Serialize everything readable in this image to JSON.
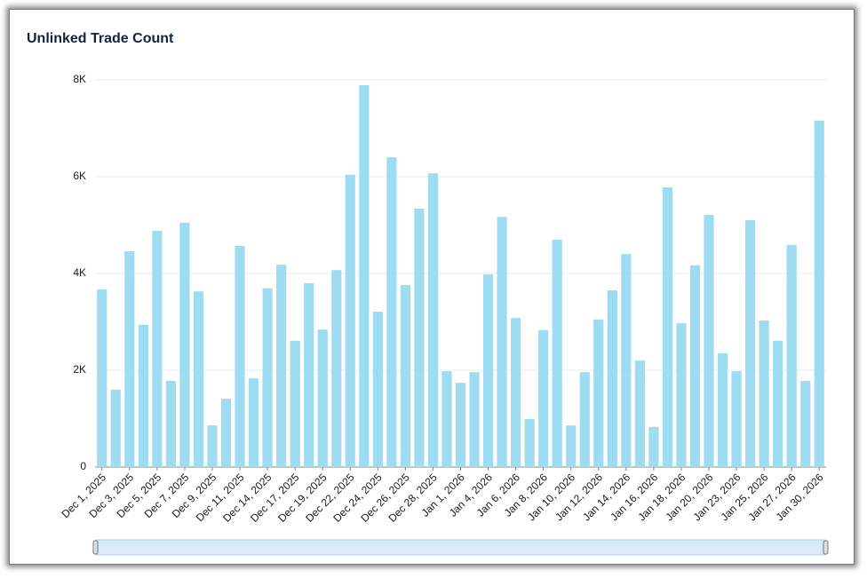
{
  "chart_data": {
    "type": "bar",
    "title": "Unlinked Trade Count",
    "categories": [
      "Dec 1, 2025",
      null,
      "Dec 3, 2025",
      null,
      "Dec 5, 2025",
      null,
      "Dec 7, 2025",
      null,
      "Dec 9, 2025",
      null,
      "Dec 11, 2025",
      null,
      "Dec 14, 2025",
      null,
      "Dec 17, 2025",
      null,
      "Dec 19, 2025",
      null,
      "Dec 22, 2025",
      null,
      "Dec 24, 2025",
      null,
      "Dec 26, 2025",
      null,
      "Dec 28, 2025",
      null,
      "Jan 1, 2026",
      null,
      "Jan 4, 2026",
      null,
      "Jan 6, 2026",
      null,
      "Jan 8, 2026",
      null,
      "Jan 10, 2026",
      null,
      "Jan 12, 2026",
      null,
      "Jan 14, 2026",
      null,
      "Jan 16, 2026",
      null,
      "Jan 18, 2026",
      null,
      "Jan 20, 2026",
      null,
      "Jan 23, 2026",
      null,
      "Jan 25, 2026",
      null,
      "Jan 27, 2026",
      null,
      "Jan 30, 2026"
    ],
    "values": [
      3670,
      1600,
      4460,
      2940,
      4880,
      1780,
      5050,
      3630,
      860,
      1410,
      4570,
      1830,
      3690,
      4180,
      2610,
      3800,
      2840,
      4070,
      6040,
      7890,
      3210,
      6400,
      3760,
      5340,
      6070,
      1980,
      1740,
      1960,
      3980,
      5170,
      3080,
      990,
      2830,
      4700,
      860,
      1960,
      3050,
      3650,
      4400,
      2200,
      830,
      5780,
      2970,
      4170,
      5210,
      2350,
      1980,
      5100,
      3030,
      2610,
      4590,
      1780,
      7160
    ],
    "color": "#9edcf2",
    "ylim": [
      0,
      8000
    ],
    "yticks": [
      0,
      {
        "value": 2000,
        "label": "2K"
      },
      {
        "value": 4000,
        "label": "4K"
      },
      {
        "value": 6000,
        "label": "6K"
      },
      {
        "value": 8000,
        "label": "8K"
      }
    ],
    "grid": true
  }
}
